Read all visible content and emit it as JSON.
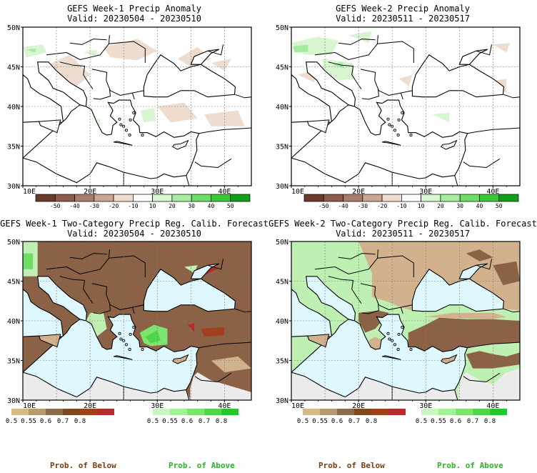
{
  "panels": [
    {
      "title": "GEFS Week-1 Precip Anomaly",
      "valid": "Valid: 20230504 - 20230510",
      "type": "anomaly"
    },
    {
      "title": "GEFS Week-2 Precip Anomaly",
      "valid": "Valid: 20230511 - 20230517",
      "type": "anomaly"
    },
    {
      "title": "GEFS Week-1 Two-Category Precip Reg. Calib. Forecast",
      "valid": "Valid: 20230504 - 20230510",
      "type": "prob"
    },
    {
      "title": "GEFS Week-2 Two-Category Precip Reg. Calib. Forecast",
      "valid": "Valid: 20230511 - 20230517",
      "type": "prob"
    }
  ],
  "axes": {
    "lat_labels": [
      "50N",
      "45N",
      "40N",
      "35N",
      "30N"
    ],
    "lon_labels": [
      "10E",
      "20E",
      "30E",
      "40E"
    ]
  },
  "anomaly_legend": {
    "labels": [
      "-50",
      "-40",
      "-30",
      "-20",
      "-10",
      "10",
      "20",
      "30",
      "40",
      "50"
    ],
    "colors": [
      "#6b3a2a",
      "#8b5a4a",
      "#a87b6a",
      "#c9a594",
      "#eedccf",
      "#ffffff",
      "#d7f5d0",
      "#a6eba0",
      "#6fdc68",
      "#3cc83a",
      "#129e1a"
    ]
  },
  "prob_below_legend": {
    "labels": [
      "0.5",
      "0.55",
      "0.6",
      "0.7",
      "0.8"
    ],
    "colors": [
      "#d9b88a",
      "#b99872",
      "#8e6a4c",
      "#7a4a22",
      "#a0401c",
      "#b52a2a"
    ]
  },
  "prob_above_legend": {
    "labels": [
      "0.5",
      "0.55",
      "0.6",
      "0.7",
      "0.8"
    ],
    "colors": [
      "#c9f7c0",
      "#a6f09a",
      "#7de470",
      "#4fd64a",
      "#22c82a"
    ]
  },
  "footer": {
    "below": "Prob. of Below",
    "above": "Prob. of Above"
  },
  "colors": {
    "below_label": "#7a3b12",
    "above_label": "#27b523",
    "sea": "#dff8ff",
    "land_brown": "#8b6245",
    "land_tan": "#d2b18d",
    "land_green": "#bff0b3",
    "no_data": "#ececec"
  }
}
